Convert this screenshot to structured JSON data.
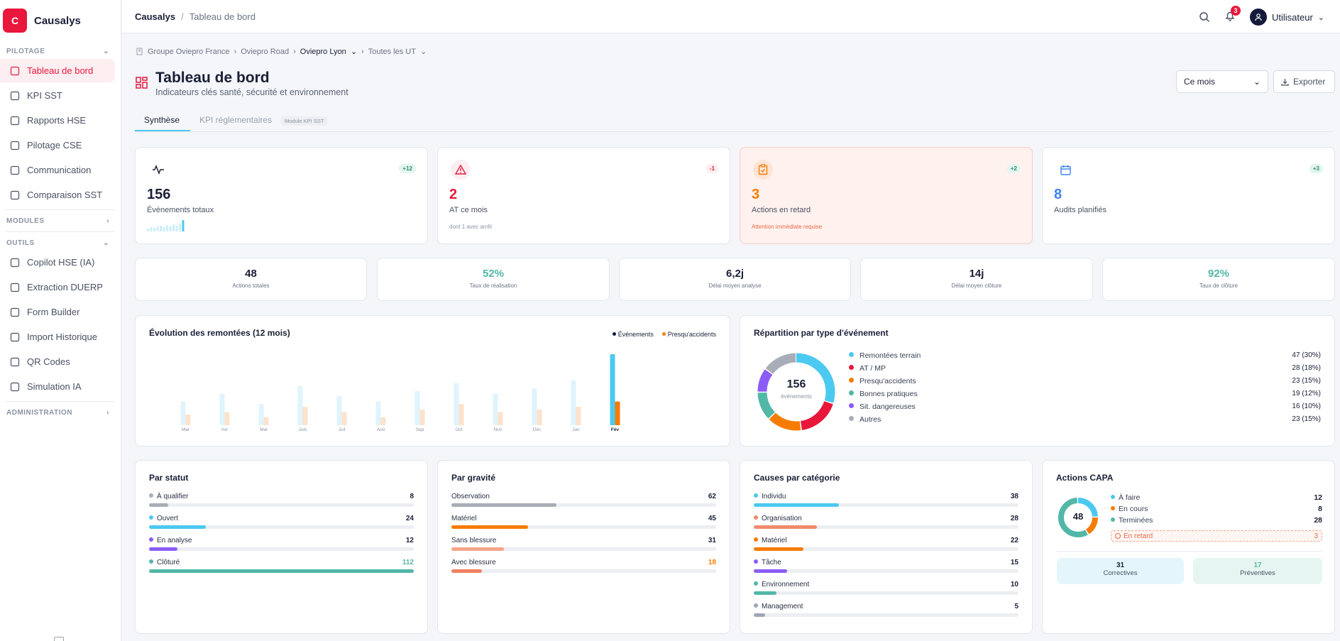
{
  "app": {
    "name": "Causalys",
    "logo_letter": "C"
  },
  "sidebar": {
    "sections": [
      "PILOTAGE",
      "MODULES",
      "OUTILS",
      "ADMINISTRATION"
    ],
    "pilotage": [
      {
        "label": "Tableau de bord",
        "icon": "grid-icon"
      },
      {
        "label": "KPI SST",
        "icon": "trend-icon"
      },
      {
        "label": "Rapports HSE",
        "icon": "file-icon"
      },
      {
        "label": "Pilotage CSE",
        "icon": "users-icon"
      },
      {
        "label": "Communication",
        "icon": "chat-icon"
      },
      {
        "label": "Comparaison SST",
        "icon": "compare-icon"
      }
    ],
    "outils": [
      {
        "label": "Copilot HSE (IA)",
        "icon": "sparkle-icon"
      },
      {
        "label": "Extraction DUERP",
        "icon": "extract-icon"
      },
      {
        "label": "Form Builder",
        "icon": "form-icon"
      },
      {
        "label": "Import Historique",
        "icon": "import-icon"
      },
      {
        "label": "QR Codes",
        "icon": "qr-icon"
      },
      {
        "label": "Simulation IA",
        "icon": "globe-icon"
      }
    ]
  },
  "topbar": {
    "root": "Causalys",
    "separator": "/",
    "page": "Tableau de bord",
    "notif_count": "3",
    "user": "Utilisateur"
  },
  "org_breadcrumb": [
    "Groupe Oviepro France",
    "Oviepro Road",
    "Oviepro Lyon",
    "Toutes les UT"
  ],
  "header": {
    "title": "Tableau de bord",
    "subtitle": "Indicateurs clés santé, sécurité et environnement",
    "period": "Ce mois",
    "export": "Exporter"
  },
  "tabs": {
    "synthese": "Synthèse",
    "kpi": "KPI réglementaires",
    "kpi_badge": "Module KPI SST"
  },
  "kpis": [
    {
      "value": "156",
      "label": "Événements totaux",
      "delta": "+12",
      "sub": ""
    },
    {
      "value": "2",
      "label": "AT ce mois",
      "delta": "-1",
      "sub": "dont 1 avec arrêt"
    },
    {
      "value": "3",
      "label": "Actions en retard",
      "delta": "+2",
      "sub": "Attention immédiate requise"
    },
    {
      "value": "8",
      "label": "Audits planifiés",
      "delta": "+3",
      "sub": ""
    }
  ],
  "stats": [
    {
      "value": "48",
      "label": "Actions totales"
    },
    {
      "value": "52%",
      "label": "Taux de réalisation"
    },
    {
      "value": "6,2j",
      "label": "Délai moyen analyse"
    },
    {
      "value": "14j",
      "label": "Délai moyen clôture"
    },
    {
      "value": "92%",
      "label": "Taux de clôture"
    }
  ],
  "chart_data": [
    {
      "type": "bar",
      "title": "Évolution des remontées (12 mois)",
      "categories": [
        "Mar",
        "Avr",
        "Mai",
        "Juin",
        "Juil",
        "Aoû",
        "Sep",
        "Oct",
        "Nov",
        "Déc",
        "Jan",
        "Fév"
      ],
      "series": [
        {
          "name": "Événements",
          "values": [
            9,
            12,
            8,
            15,
            11,
            9,
            13,
            16,
            12,
            14,
            17,
            27
          ]
        },
        {
          "name": "Presqu'accidents",
          "values": [
            4,
            5,
            3,
            7,
            5,
            3,
            6,
            8,
            5,
            6,
            7,
            9
          ]
        }
      ]
    },
    {
      "type": "pie",
      "title": "Répartition par type d'événement",
      "center_value": "156",
      "center_label": "événements",
      "slices": [
        {
          "label": "Remontées terrain",
          "display": "47 (30%)",
          "value": 47,
          "color": "#4cc9f0"
        },
        {
          "label": "AT / MP",
          "display": "28 (18%)",
          "value": 28,
          "color": "#e8173b"
        },
        {
          "label": "Presqu'accidents",
          "display": "23 (15%)",
          "value": 23,
          "color": "#f57c00"
        },
        {
          "label": "Bonnes pratiques",
          "display": "19 (12%)",
          "value": 19,
          "color": "#52b7a7"
        },
        {
          "label": "Sit. dangereuses",
          "display": "16 (10%)",
          "value": 16,
          "color": "#8b5cf6"
        },
        {
          "label": "Autres",
          "display": "23 (15%)",
          "value": 23,
          "color": "#a8adb8"
        }
      ]
    }
  ],
  "par_statut": {
    "title": "Par statut",
    "max": 112,
    "items": [
      {
        "label": "À qualifier",
        "value": "8",
        "color": "#a8adb8"
      },
      {
        "label": "Ouvert",
        "value": "24",
        "color": "#4cc9f0"
      },
      {
        "label": "En analyse",
        "value": "12",
        "color": "#8b5cf6"
      },
      {
        "label": "Clôturé",
        "value": "112",
        "color": "#52b7a7"
      }
    ]
  },
  "par_gravite": {
    "title": "Par gravité",
    "max": 156,
    "items": [
      {
        "label": "Observation",
        "value": "62",
        "color": "#a8adb8"
      },
      {
        "label": "Matériel",
        "value": "45",
        "color": "#f57c00"
      },
      {
        "label": "Sans blessure",
        "value": "31",
        "color": "#f4a58a"
      },
      {
        "label": "Avec blessure",
        "value": "18",
        "color": "#f08060"
      }
    ]
  },
  "causes": {
    "title": "Causes par catégorie",
    "max": 118,
    "items": [
      {
        "label": "Individu",
        "value": "38",
        "color": "#4cc9f0"
      },
      {
        "label": "Organisation",
        "value": "28",
        "color": "#f08a6a"
      },
      {
        "label": "Matériel",
        "value": "22",
        "color": "#f57c00"
      },
      {
        "label": "Tâche",
        "value": "15",
        "color": "#8b5cf6"
      },
      {
        "label": "Environnement",
        "value": "10",
        "color": "#52b7a7"
      },
      {
        "label": "Management",
        "value": "5",
        "color": "#a0a4b8"
      }
    ]
  },
  "capa": {
    "title": "Actions CAPA",
    "total": "48",
    "items": [
      {
        "label": "À faire",
        "value": "12",
        "color": "#4cc9f0"
      },
      {
        "label": "En cours",
        "value": "8",
        "color": "#f57c00"
      },
      {
        "label": "Terminées",
        "value": "28",
        "color": "#52b7a7"
      }
    ],
    "late_label": "En retard",
    "late_value": "3",
    "correctives": "31",
    "correctives_label": "Correctives",
    "preventives": "17",
    "preventives_label": "Préventives"
  }
}
